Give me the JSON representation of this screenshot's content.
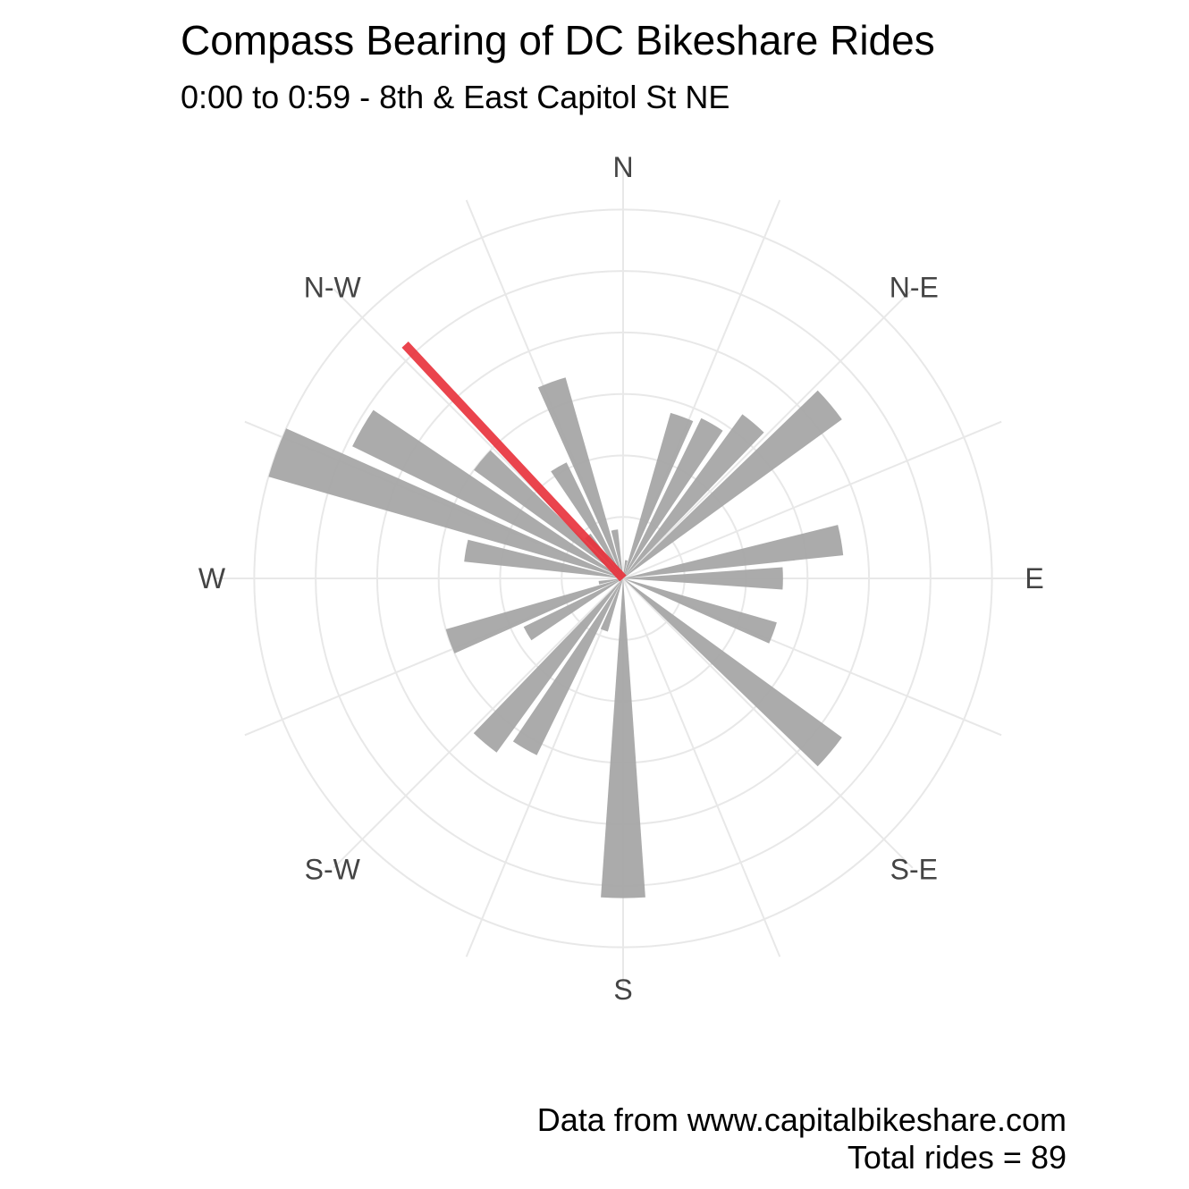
{
  "chart_data": {
    "type": "polar-bar",
    "title": "Compass Bearing of DC Bikeshare Rides",
    "subtitle": "0:00 to 0:59 - 8th & East Capitol St NE",
    "direction_labels": [
      {
        "angle": 0,
        "text": "N"
      },
      {
        "angle": 45,
        "text": "N-E"
      },
      {
        "angle": 90,
        "text": "E"
      },
      {
        "angle": 135,
        "text": "S-E"
      },
      {
        "angle": 180,
        "text": "S"
      },
      {
        "angle": 225,
        "text": "S-W"
      },
      {
        "angle": 270,
        "text": "W"
      },
      {
        "angle": 315,
        "text": "N-W"
      }
    ],
    "bins": [
      {
        "bearing": 10,
        "count": 0.3
      },
      {
        "bearing": 20,
        "count": 2.8
      },
      {
        "bearing": 30,
        "count": 2.9
      },
      {
        "bearing": 40,
        "count": 3.3
      },
      {
        "bearing": 50,
        "count": 4.4
      },
      {
        "bearing": 80,
        "count": 3.6
      },
      {
        "bearing": 90,
        "count": 2.6
      },
      {
        "bearing": 110,
        "count": 2.6
      },
      {
        "bearing": 130,
        "count": 4.4
      },
      {
        "bearing": 180,
        "count": 5.2
      },
      {
        "bearing": 200,
        "count": 0.9
      },
      {
        "bearing": 210,
        "count": 3.2
      },
      {
        "bearing": 220,
        "count": 3.5
      },
      {
        "bearing": 240,
        "count": 1.8
      },
      {
        "bearing": 250,
        "count": 3.0
      },
      {
        "bearing": 260,
        "count": 0.4
      },
      {
        "bearing": 280,
        "count": 2.6
      },
      {
        "bearing": 290,
        "count": 6.0
      },
      {
        "bearing": 300,
        "count": 4.9
      },
      {
        "bearing": 310,
        "count": 3.0
      },
      {
        "bearing": 320,
        "count": 0.9
      },
      {
        "bearing": 330,
        "count": 2.1
      },
      {
        "bearing": 340,
        "count": 3.4
      },
      {
        "bearing": 350,
        "count": 0.8
      }
    ],
    "rmax": 6.66,
    "gridline_radii": [
      1,
      2,
      3,
      4,
      5,
      6
    ],
    "mean_bearing": 317,
    "mean_length": 5.2,
    "colors": {
      "bars": "#a6a6a6",
      "mean": "#e8303a",
      "grid": "#e8e8e8"
    },
    "caption_source": "Data from www.capitalbikeshare.com",
    "caption_total": "Total rides =  89"
  }
}
